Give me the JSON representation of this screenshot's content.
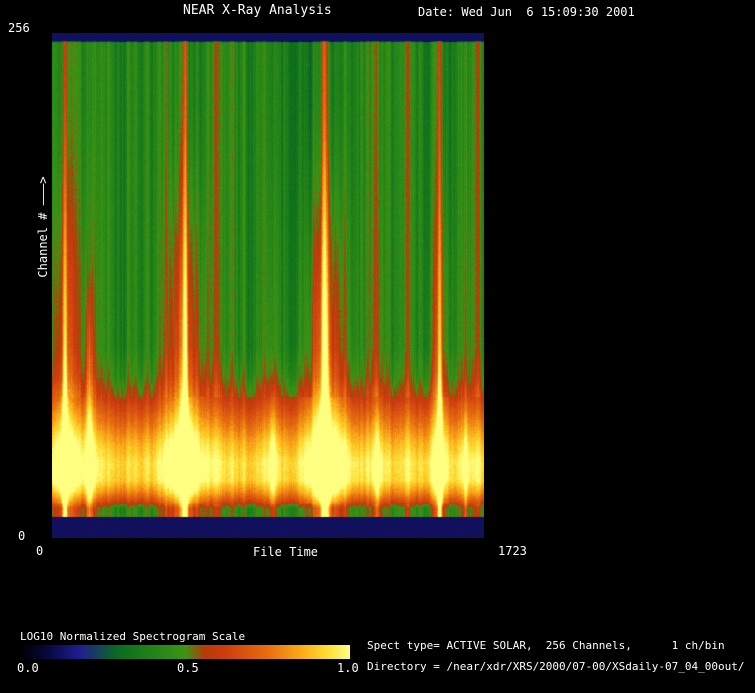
{
  "header": {
    "title": "NEAR X-Ray Analysis",
    "date": "Date: Wed Jun  6 15:09:30 2001"
  },
  "plot": {
    "y_max": "256",
    "y_min": "0",
    "y_title": "Channel # ———>",
    "x_min": "0",
    "x_title": "File Time",
    "x_max": "1723"
  },
  "colorbar": {
    "title": "LOG10 Normalized Spectrogram Scale",
    "ticks": [
      "0.0",
      "0.5",
      "1.0"
    ]
  },
  "info": {
    "spect_type": "Spect type= ACTIVE SOLAR,  256 Channels,      1 ch/bin",
    "directory": "Directory = /near/xdr/XRS/2000/07-00/XSdaily-07_04_00out/"
  },
  "chart_data": {
    "type": "heatmap",
    "title": "NEAR X-Ray Analysis",
    "xlabel": "File Time",
    "ylabel": "Channel #",
    "xlim": [
      0,
      1723
    ],
    "ylim": [
      0,
      256
    ],
    "channels": 256,
    "ch_per_bin": 1,
    "spect_type": "ACTIVE SOLAR",
    "scale_label": "LOG10 Normalized Spectrogram Scale",
    "scale_range": [
      0.0,
      1.0
    ],
    "legend_position": "bottom-left",
    "grid": false,
    "colormap_stops": [
      [
        0.0,
        0,
        0,
        0
      ],
      [
        0.08,
        8,
        8,
        60
      ],
      [
        0.18,
        30,
        30,
        145
      ],
      [
        0.3,
        10,
        110,
        30
      ],
      [
        0.5,
        60,
        150,
        20
      ],
      [
        0.56,
        180,
        60,
        10
      ],
      [
        0.62,
        205,
        60,
        15
      ],
      [
        0.75,
        230,
        110,
        15
      ],
      [
        0.85,
        250,
        170,
        25
      ],
      [
        0.93,
        255,
        220,
        50
      ],
      [
        1.0,
        255,
        255,
        130
      ]
    ],
    "background_level": 0.44,
    "out_of_range_level": 0.12,
    "base_profile": [
      [
        0.0,
        0.12
      ],
      [
        0.015,
        0.12
      ],
      [
        0.018,
        0.44
      ],
      [
        0.62,
        0.44
      ],
      [
        0.68,
        0.5
      ],
      [
        0.72,
        0.6
      ],
      [
        0.76,
        0.72
      ],
      [
        0.81,
        0.87
      ],
      [
        0.85,
        0.95
      ],
      [
        0.885,
        0.93
      ],
      [
        0.91,
        0.79
      ],
      [
        0.928,
        0.64
      ],
      [
        0.94,
        0.48
      ],
      [
        0.954,
        0.48
      ],
      [
        0.956,
        0.58
      ],
      [
        0.958,
        0.12
      ],
      [
        1.0,
        0.12
      ]
    ],
    "flares": [
      {
        "x": 52,
        "core_amp": 0.55,
        "core_sigma": 7,
        "base_amp": 0.2,
        "base_sigma": 36,
        "reach": 1.0
      },
      {
        "x": 150,
        "core_amp": 0.22,
        "core_sigma": 9,
        "base_amp": 0.1,
        "base_sigma": 30,
        "reach": 0.6
      },
      {
        "x": 530,
        "core_amp": 0.55,
        "core_sigma": 9,
        "base_amp": 0.26,
        "base_sigma": 55,
        "reach": 1.0
      },
      {
        "x": 880,
        "core_amp": 0.14,
        "core_sigma": 8,
        "base_amp": 0.07,
        "base_sigma": 25,
        "reach": 0.4
      },
      {
        "x": 1089,
        "core_amp": 0.62,
        "core_sigma": 10,
        "base_amp": 0.3,
        "base_sigma": 60,
        "reach": 1.0
      },
      {
        "x": 1300,
        "core_amp": 0.12,
        "core_sigma": 7,
        "base_amp": 0.06,
        "base_sigma": 22,
        "reach": 0.35
      },
      {
        "x": 1547,
        "core_amp": 0.52,
        "core_sigma": 7,
        "base_amp": 0.16,
        "base_sigma": 30,
        "reach": 1.0
      },
      {
        "x": 1650,
        "core_amp": 0.13,
        "core_sigma": 6,
        "base_amp": 0.06,
        "base_sigma": 20,
        "reach": 0.35
      }
    ]
  }
}
